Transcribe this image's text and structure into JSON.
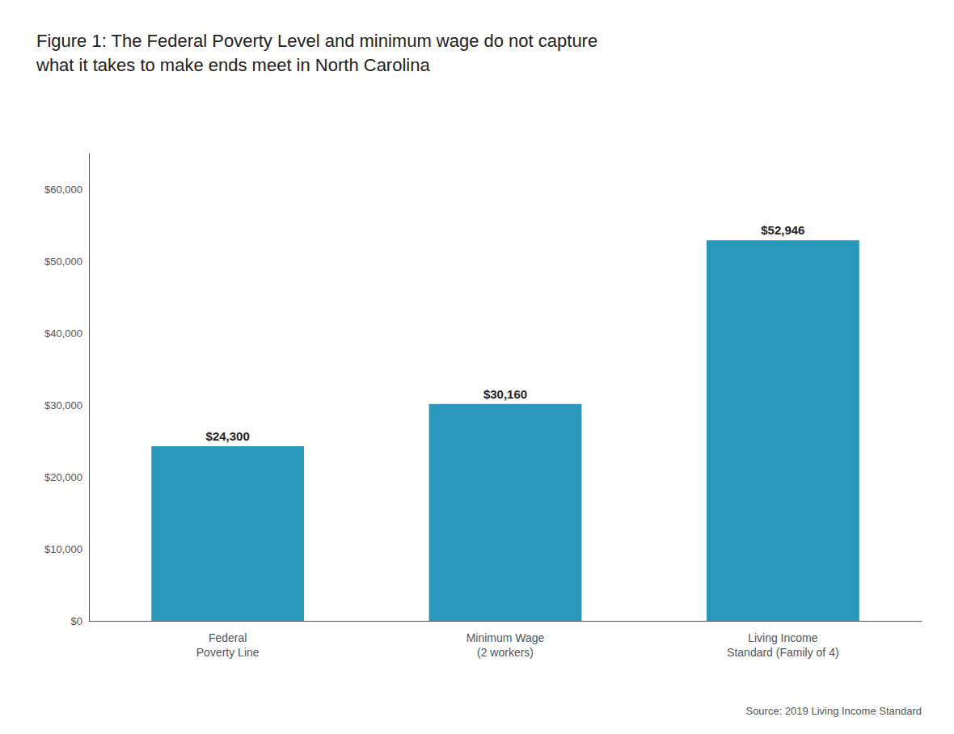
{
  "chart_data": {
    "type": "bar",
    "title": "Figure 1: The Federal Poverty Level and minimum wage do not capture\nwhat it takes to make ends meet in North Carolina",
    "categories": [
      "Federal\nPoverty Line",
      "Minimum Wage\n(2 workers)",
      "Living Income\nStandard (Family of 4)"
    ],
    "values": [
      24300,
      30160,
      52946
    ],
    "value_labels": [
      "$24,300",
      "$30,160",
      "$52,946"
    ],
    "data_labels": true,
    "color": "#2998bb",
    "ylim": [
      0,
      65000
    ],
    "yticks": [
      {
        "value": 0,
        "label": "$0"
      },
      {
        "value": 10000,
        "label": "$10,000"
      },
      {
        "value": 20000,
        "label": "$20,000"
      },
      {
        "value": 30000,
        "label": "$30,000"
      },
      {
        "value": 40000,
        "label": "$40,000"
      },
      {
        "value": 50000,
        "label": "$50,000"
      },
      {
        "value": 60000,
        "label": "$60,000"
      }
    ],
    "grid": false,
    "annotations": [
      "Source: 2019 Living Income Standard"
    ]
  }
}
